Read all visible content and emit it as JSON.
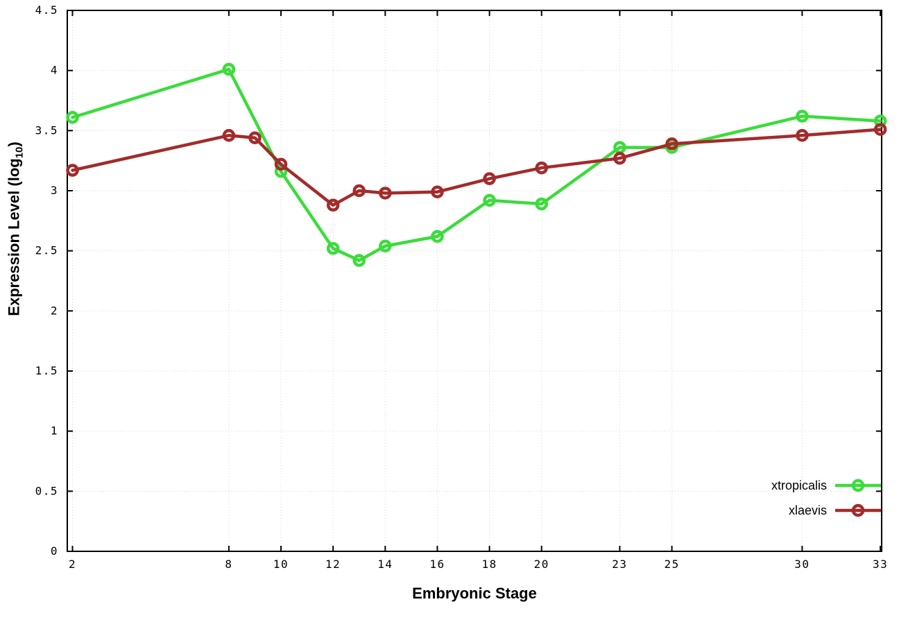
{
  "chart_data": {
    "type": "line",
    "title": "",
    "xlabel": "Embryonic Stage",
    "ylabel": "Expression Level (log10)",
    "ylabel_parts": {
      "main": "Expression Level (log",
      "sub": "10",
      "end": ")"
    },
    "xlim": [
      1.8,
      33.05
    ],
    "ylim": [
      0,
      4.5
    ],
    "grid": true,
    "legend_position": "bottom-right",
    "xticks": [
      {
        "v": 2,
        "label": "2"
      },
      {
        "v": 8,
        "label": "8"
      },
      {
        "v": 10,
        "label": "10"
      },
      {
        "v": 12,
        "label": "12"
      },
      {
        "v": 14,
        "label": "14"
      },
      {
        "v": 16,
        "label": "16"
      },
      {
        "v": 18,
        "label": "18"
      },
      {
        "v": 20,
        "label": "20"
      },
      {
        "v": 23,
        "label": "23"
      },
      {
        "v": 25,
        "label": "25"
      },
      {
        "v": 30,
        "label": "30"
      },
      {
        "v": 33,
        "label": "33"
      }
    ],
    "yticks": [
      {
        "v": 0,
        "label": "0"
      },
      {
        "v": 0.5,
        "label": "0.5"
      },
      {
        "v": 1,
        "label": "1"
      },
      {
        "v": 1.5,
        "label": "1.5"
      },
      {
        "v": 2,
        "label": "2"
      },
      {
        "v": 2.5,
        "label": "2.5"
      },
      {
        "v": 3,
        "label": "3"
      },
      {
        "v": 3.5,
        "label": "3.5"
      },
      {
        "v": 4,
        "label": "4"
      },
      {
        "v": 4.5,
        "label": "4.5"
      }
    ],
    "series": [
      {
        "name": "xtropicalis",
        "color": "#3bdc3b",
        "x": [
          2,
          8,
          10,
          12,
          13,
          14,
          16,
          18,
          20,
          23,
          25,
          30,
          33
        ],
        "y": [
          3.61,
          4.01,
          3.16,
          2.52,
          2.42,
          2.54,
          2.62,
          2.92,
          2.89,
          3.36,
          3.36,
          3.62,
          3.58
        ]
      },
      {
        "name": "xlaevis",
        "color": "#a32b2b",
        "x": [
          2,
          8,
          9,
          10,
          12,
          13,
          14,
          16,
          18,
          20,
          23,
          25,
          30,
          33
        ],
        "y": [
          3.17,
          3.46,
          3.44,
          3.22,
          2.88,
          3.0,
          2.98,
          2.99,
          3.1,
          3.19,
          3.27,
          3.39,
          3.46,
          3.51
        ]
      }
    ],
    "styles": {
      "line_width": 4.5,
      "marker_radius": 7,
      "grid_color": "#d4d4d4",
      "border_color": "#000000",
      "tick_label_color": "#000000"
    }
  }
}
